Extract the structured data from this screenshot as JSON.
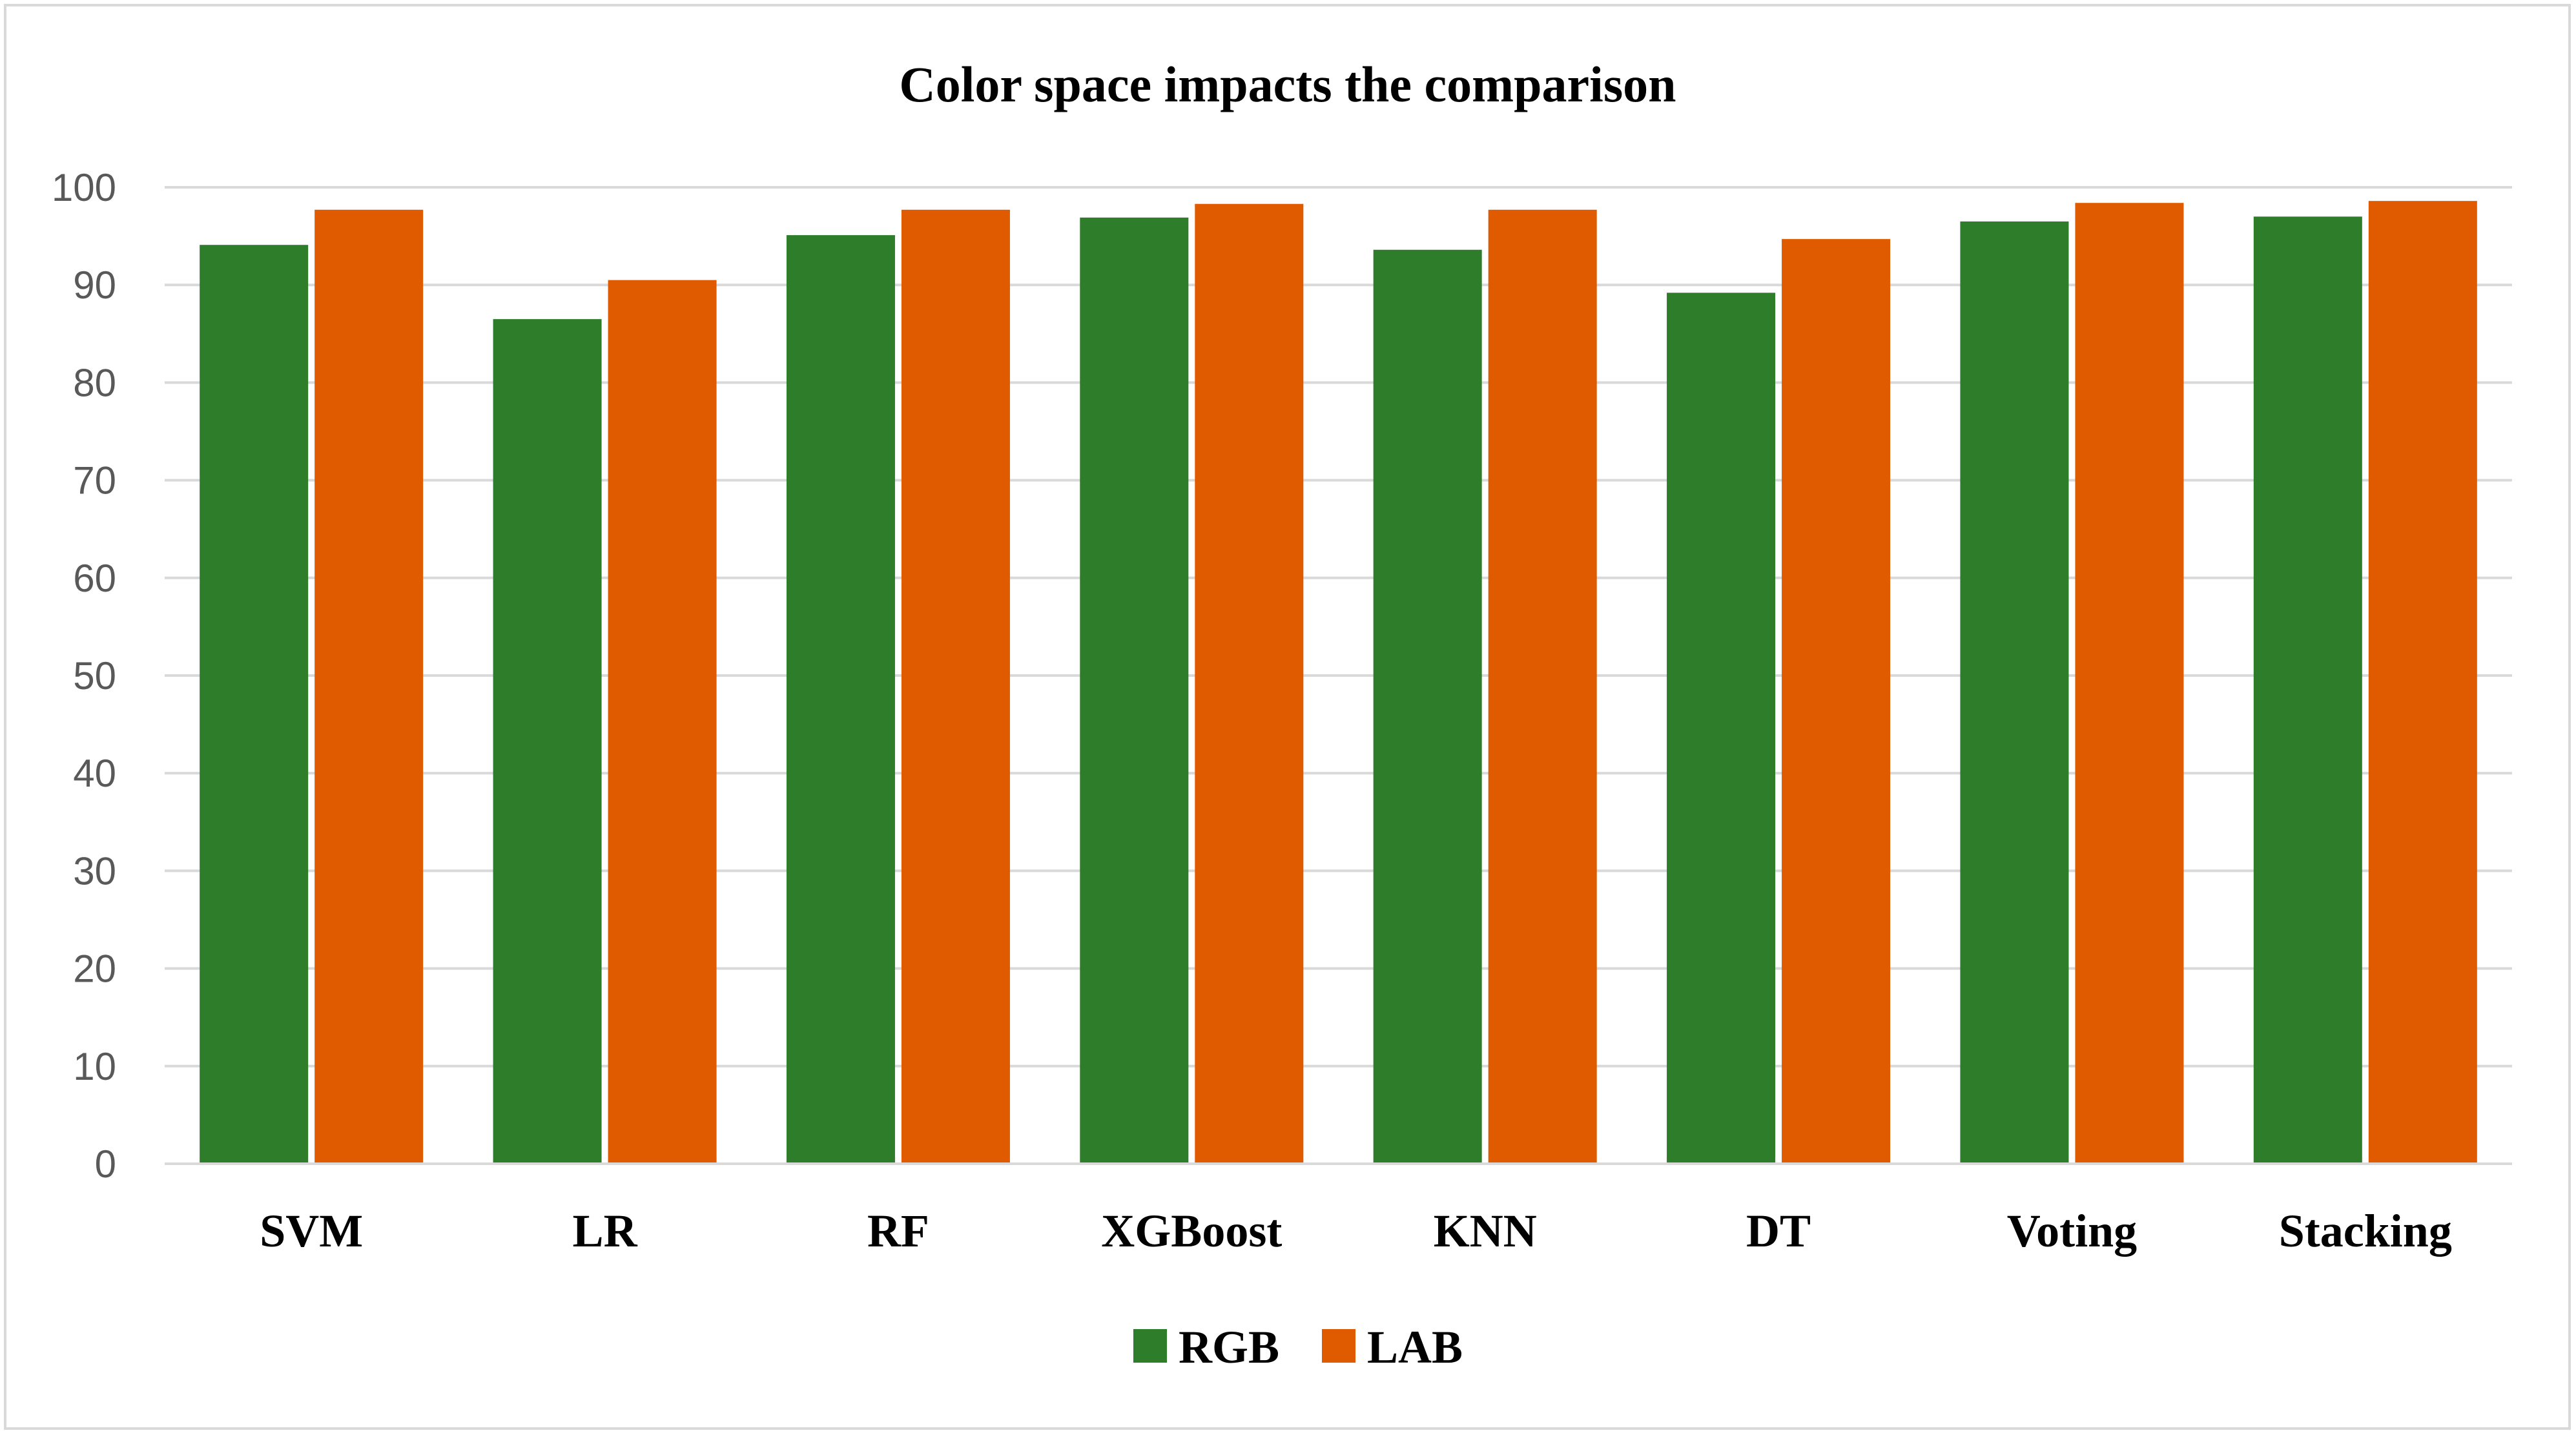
{
  "chart_data": {
    "type": "bar",
    "title": "Color space impacts the comparison",
    "xlabel": "",
    "ylabel": "",
    "categories": [
      "SVM",
      "LR",
      "RF",
      "XGBoost",
      "KNN",
      "DT",
      "Voting",
      "Stacking"
    ],
    "series": [
      {
        "name": "RGB",
        "color": "#2e7d2a",
        "values": [
          94.1,
          86.5,
          95.1,
          96.9,
          93.6,
          89.2,
          96.5,
          97.0
        ]
      },
      {
        "name": "LAB",
        "color": "#e05a00",
        "values": [
          97.7,
          90.5,
          97.7,
          98.3,
          97.7,
          94.7,
          98.4,
          98.6
        ]
      }
    ],
    "ylim": [
      0,
      100
    ],
    "yticks": [
      "0",
      "10",
      "20",
      "30",
      "40",
      "50",
      "60",
      "70",
      "80",
      "90",
      "100"
    ],
    "grid": true,
    "legend_position": "bottom"
  }
}
